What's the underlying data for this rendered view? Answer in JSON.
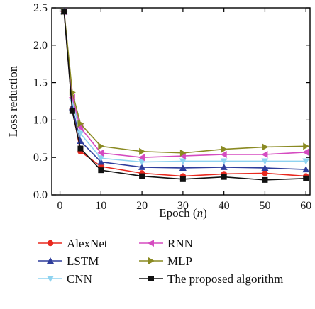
{
  "chart_data": {
    "type": "line",
    "title": "",
    "xlabel": "Epoch (n)",
    "xlabel_main": "Epoch (",
    "xlabel_var": "n",
    "xlabel_close": ")",
    "ylabel": "Loss reduction",
    "x": [
      1,
      3,
      5,
      10,
      20,
      30,
      40,
      50,
      60
    ],
    "xlim": [
      -2,
      61
    ],
    "ylim": [
      0,
      2.5
    ],
    "xticks": [
      0,
      10,
      20,
      30,
      40,
      50,
      60
    ],
    "yticks": [
      0.0,
      0.5,
      1.0,
      1.5,
      2.0,
      2.5
    ],
    "xtick_labels": [
      "0",
      "10",
      "20",
      "30",
      "40",
      "50",
      "60"
    ],
    "ytick_labels": [
      "0.0",
      "0.5",
      "1.0",
      "1.5",
      "2.0",
      "2.5"
    ],
    "grid": false,
    "legend_position": "bottom",
    "series": [
      {
        "name": "AlexNet",
        "marker": "circle",
        "color": "#e8281e",
        "values": [
          2.45,
          1.15,
          0.58,
          0.38,
          0.29,
          0.25,
          0.28,
          0.29,
          0.25
        ]
      },
      {
        "name": "LSTM",
        "marker": "triangle-up",
        "color": "#2e3d9c",
        "values": [
          2.45,
          1.17,
          0.72,
          0.44,
          0.37,
          0.36,
          0.37,
          0.36,
          0.34
        ]
      },
      {
        "name": "CNN",
        "marker": "triangle-down",
        "color": "#8fd3f0",
        "values": [
          2.45,
          1.25,
          0.82,
          0.49,
          0.44,
          0.45,
          0.45,
          0.45,
          0.45
        ]
      },
      {
        "name": "RNN",
        "marker": "triangle-left",
        "color": "#d54bc0",
        "values": [
          2.45,
          1.3,
          0.9,
          0.56,
          0.5,
          0.52,
          0.54,
          0.54,
          0.57
        ]
      },
      {
        "name": "MLP",
        "marker": "triangle-right",
        "color": "#8a8a22",
        "values": [
          2.45,
          1.37,
          0.95,
          0.65,
          0.58,
          0.56,
          0.61,
          0.64,
          0.65
        ]
      },
      {
        "name": "The proposed algorithm",
        "marker": "square",
        "color": "#111111",
        "values": [
          2.45,
          1.12,
          0.62,
          0.33,
          0.25,
          0.21,
          0.24,
          0.2,
          0.22
        ]
      }
    ]
  }
}
